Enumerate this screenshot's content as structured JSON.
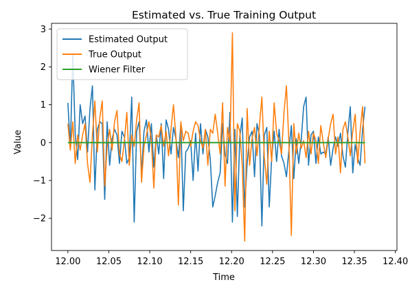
{
  "chart_data": {
    "type": "line",
    "title": "Estimated vs. True Training Output",
    "xlabel": "Time",
    "ylabel": "Value",
    "xlim": [
      11.98,
      12.402
    ],
    "ylim": [
      -2.85,
      3.15
    ],
    "xticks": [
      12.0,
      12.05,
      12.1,
      12.15,
      12.2,
      12.25,
      12.3,
      12.35,
      12.4
    ],
    "xtick_labels": [
      "12.00",
      "12.05",
      "12.10",
      "12.15",
      "12.20",
      "12.25",
      "12.30",
      "12.35",
      "12.40"
    ],
    "yticks": [
      -2,
      -1,
      0,
      1,
      2,
      3
    ],
    "ytick_labels": [
      "−2",
      "−1",
      "0",
      "1",
      "2",
      "3"
    ],
    "grid": false,
    "legend_position": "top-left",
    "x_start": 12.0,
    "x_step": 0.003,
    "series": [
      {
        "name": "Estimated Output",
        "color": "#1f77b4",
        "values": [
          1.05,
          -0.15,
          2.35,
          0.2,
          -0.45,
          1.0,
          0.5,
          0.7,
          -0.25,
          0.9,
          1.5,
          -1.25,
          0.35,
          0.55,
          0.5,
          -1.5,
          0.55,
          -0.6,
          0.1,
          0.35,
          0.2,
          -0.55,
          0.3,
          0.15,
          -0.55,
          -0.4,
          1.2,
          -2.1,
          0.3,
          0.55,
          -0.8,
          0.3,
          0.6,
          -0.25,
          0.5,
          -0.65,
          0.2,
          -0.3,
          0.5,
          -0.95,
          0.6,
          0.35,
          -0.3,
          0.4,
          0.1,
          -0.4,
          0.5,
          -1.8,
          -0.25,
          -0.15,
          0.05,
          -1.0,
          0.25,
          -0.75,
          0.5,
          -0.3,
          0.35,
          0.15,
          -0.45,
          -1.7,
          -1.4,
          -1.05,
          -0.8,
          0.5,
          -0.3,
          -0.55,
          0.8,
          -2.1,
          0.35,
          -1.95,
          0.15,
          0.65,
          -1.7,
          -0.55,
          0.15,
          0.3,
          -0.9,
          0.5,
          0.2,
          -2.2,
          0.2,
          0.4,
          -1.7,
          -0.4,
          0.3,
          -0.5,
          0.35,
          -0.35,
          -0.55,
          -0.9,
          -0.2,
          0.45,
          -0.95,
          0.1,
          -0.55,
          0.05,
          0.95,
          1.2,
          -0.6,
          0.2,
          0.3,
          -0.55,
          0.15,
          -0.3,
          -0.25,
          -0.3,
          0.15,
          -0.6,
          -0.15,
          0.15,
          -0.1,
          0.25,
          -0.35,
          -0.65,
          0.25,
          0.95,
          -0.8,
          -0.05,
          -0.4,
          -0.6,
          0.35,
          0.95
        ]
      },
      {
        "name": "True Output",
        "color": "#ff7f0e",
        "values": [
          0.5,
          -0.2,
          0.55,
          -0.55,
          0.2,
          -0.2,
          0.2,
          0.5,
          -0.55,
          -1.05,
          0.2,
          1.1,
          -0.25,
          0.65,
          1.1,
          -1.15,
          -0.1,
          0.35,
          -0.2,
          0.55,
          0.85,
          -0.3,
          -0.5,
          0.05,
          0.8,
          -0.6,
          0.2,
          -0.1,
          0.6,
          1.05,
          -1.05,
          -0.1,
          0.2,
          0.55,
          0.05,
          -1.2,
          0.2,
          0.15,
          0.45,
          -0.1,
          0.3,
          -0.35,
          0.35,
          1.0,
          0.15,
          -1.65,
          0.55,
          0.05,
          0.3,
          0.25,
          -0.1,
          0.3,
          0.55,
          0.45,
          0.05,
          -0.15,
          0.35,
          -0.6,
          0.35,
          0.25,
          0.75,
          0.25,
          -0.3,
          1.05,
          -1.15,
          0.4,
          0.0,
          2.9,
          -1.8,
          0.5,
          0.3,
          -0.6,
          -2.6,
          0.9,
          -0.6,
          0.1,
          0.4,
          -0.35,
          0.45,
          1.2,
          -0.4,
          -1.1,
          0.3,
          -0.5,
          1.05,
          0.25,
          0.05,
          -0.3,
          0.8,
          1.5,
          0.0,
          -2.45,
          0.5,
          -0.3,
          0.25,
          -0.15,
          0.05,
          -0.4,
          0.3,
          -0.3,
          0.25,
          0.05,
          -0.55,
          0.45,
          0.0,
          -0.4,
          0.1,
          0.5,
          0.75,
          -0.3,
          0.15,
          -0.8,
          0.35,
          0.55,
          0.15,
          -0.35,
          0.3,
          0.75,
          -0.55,
          0.3,
          0.95,
          -0.55
        ]
      },
      {
        "name": "Wiener Filter",
        "color": "#2ca02c",
        "values": [
          0.0,
          0.0
        ]
      }
    ]
  }
}
